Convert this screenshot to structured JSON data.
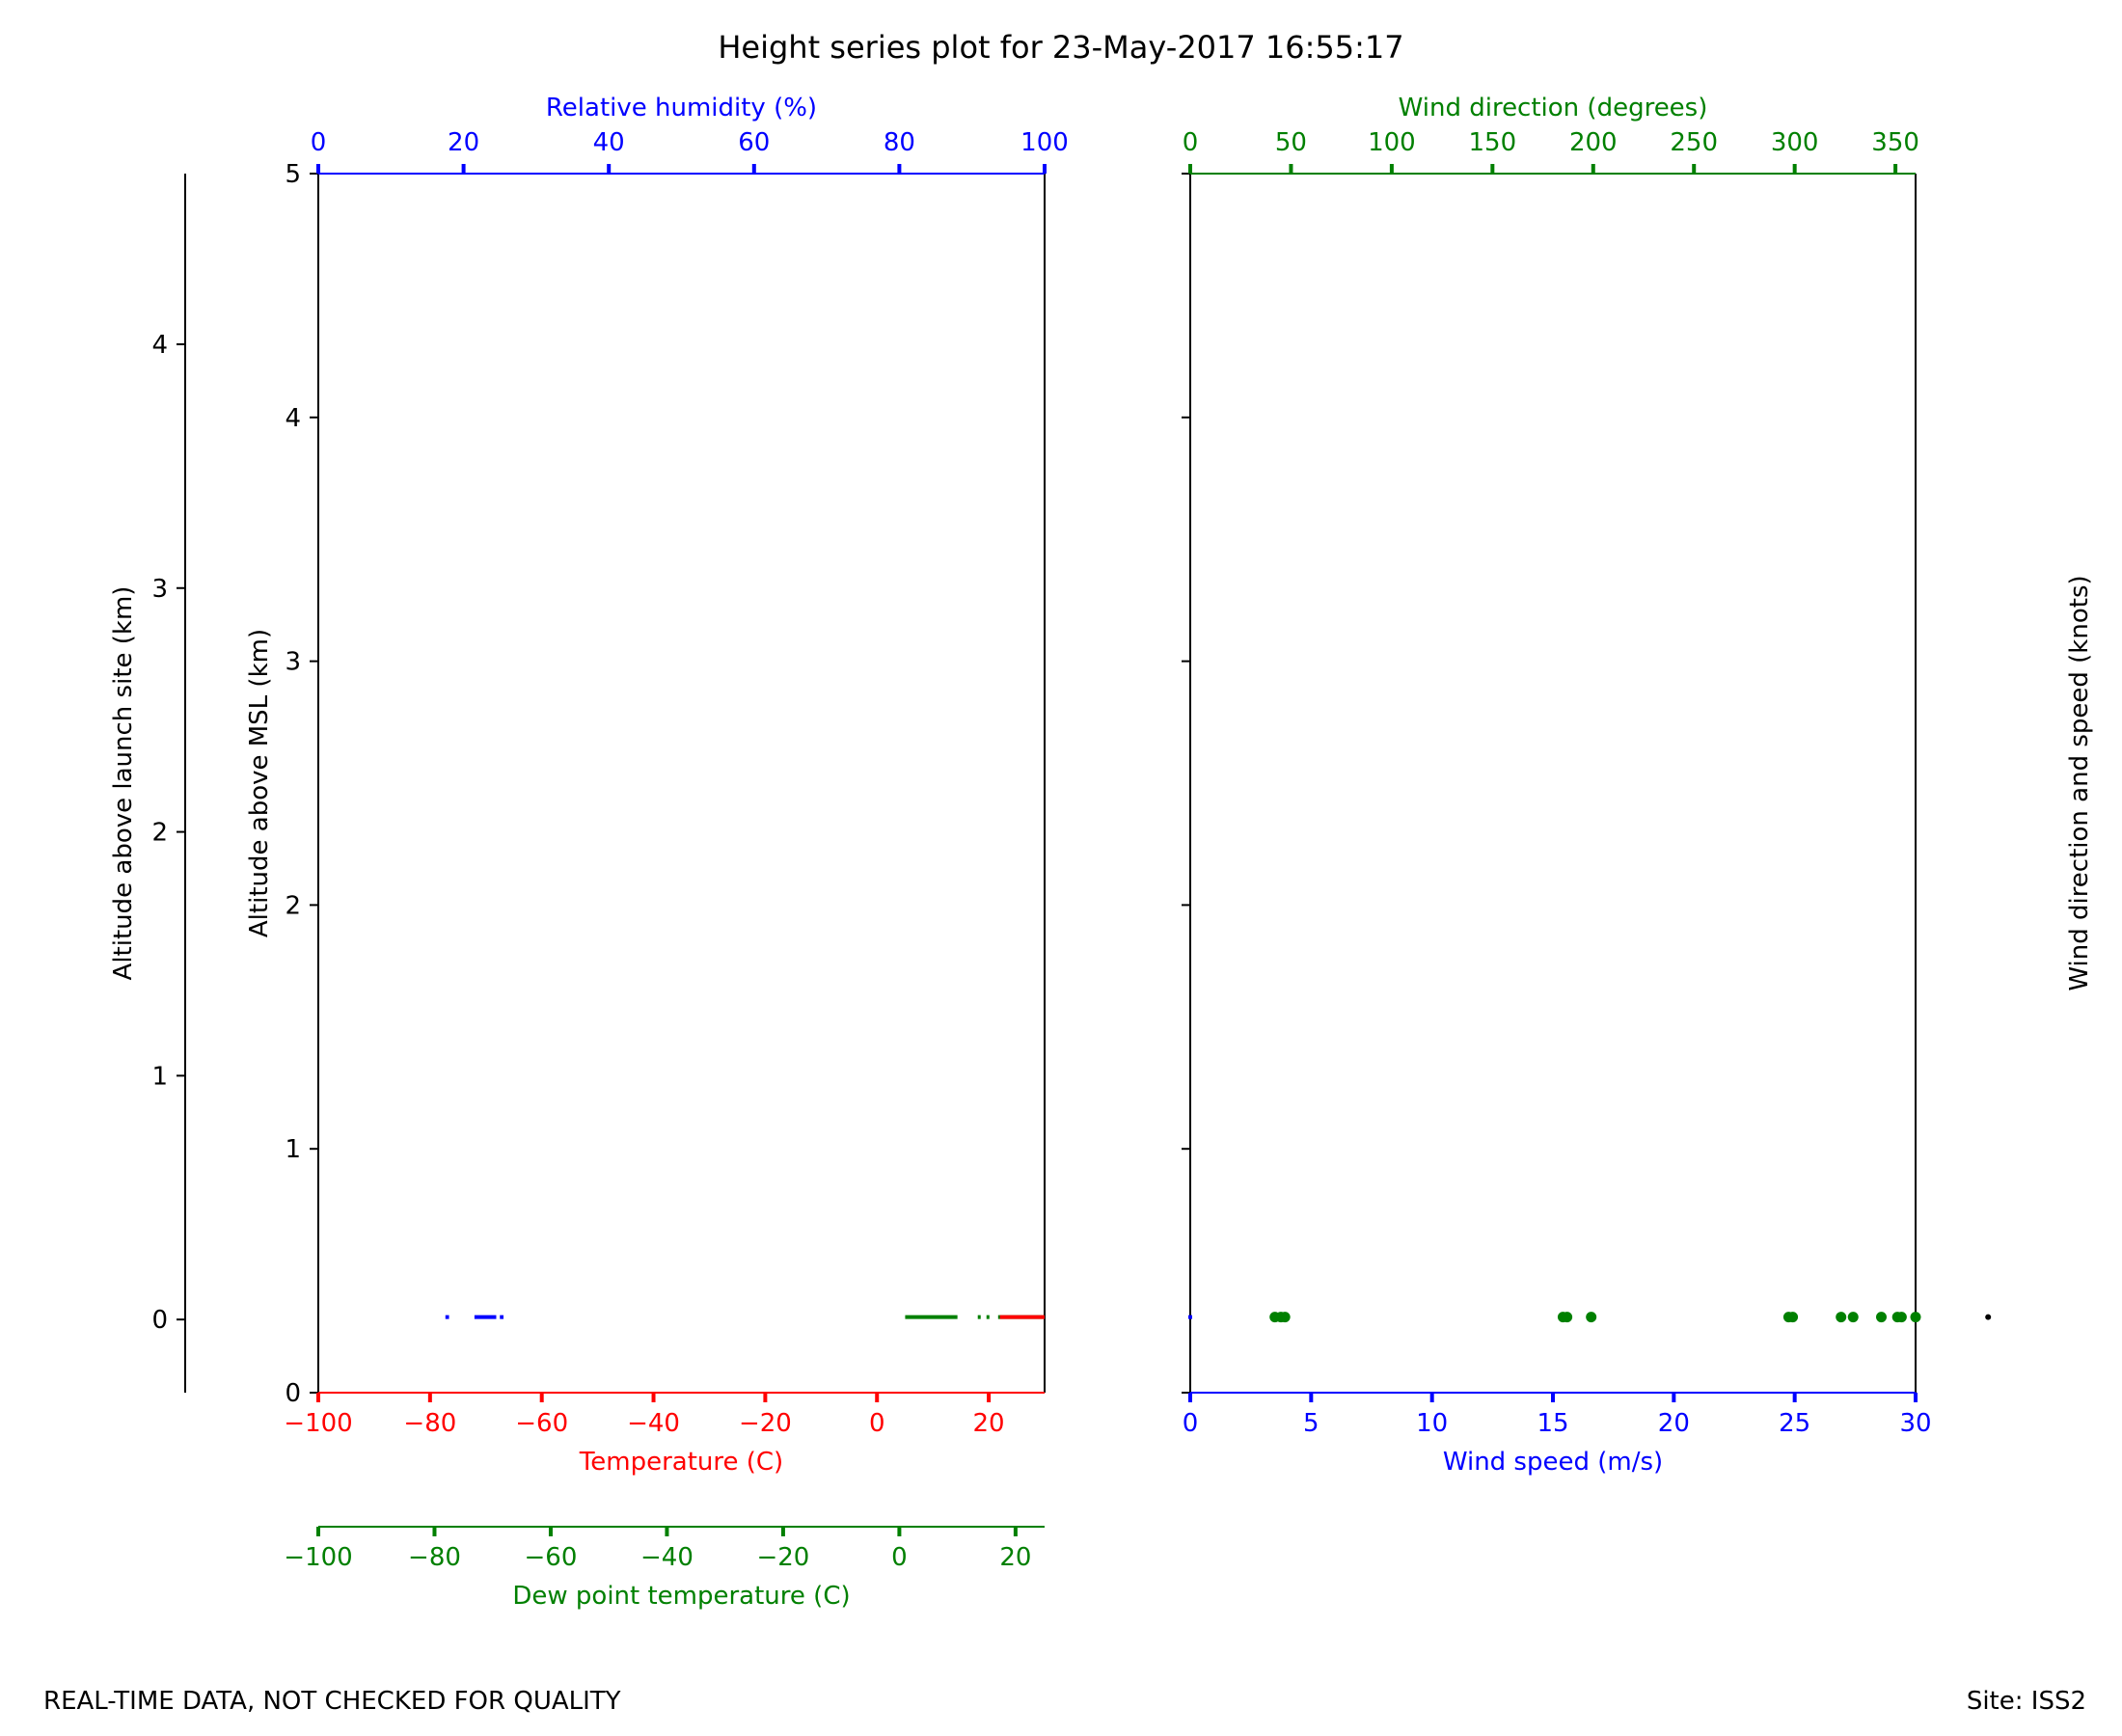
{
  "title": "Height series plot for 23-May-2017 16:55:17",
  "footer": {
    "left": "REAL-TIME DATA, NOT CHECKED FOR QUALITY",
    "right": "Site: ISS2"
  },
  "colors": {
    "temperature": "#ff0000",
    "dewpoint": "#008000",
    "humidity": "#0000ff",
    "wind_speed": "#0000ff",
    "wind_direction": "#008000",
    "axis": "#000000"
  },
  "chart_data": [
    {
      "type": "line",
      "panel": "thermodynamics",
      "y_axes": {
        "msl": {
          "label": "Altitude above MSL (km)",
          "ylim": [
            0,
            5
          ],
          "ticks": [
            0,
            1,
            2,
            3,
            4,
            5
          ]
        },
        "launch_site": {
          "label": "Altitude above launch site (km)",
          "ylim": [
            -0.3,
            4.7
          ],
          "ticks": [
            0,
            1,
            2,
            3,
            4
          ]
        }
      },
      "x_axes": {
        "temperature": {
          "label": "Temperature (C)",
          "xlim": [
            -100,
            30
          ],
          "ticks": [
            -100,
            -80,
            -60,
            -40,
            -20,
            0,
            20
          ],
          "tick_labels": [
            "−100",
            "−80",
            "−60",
            "−40",
            "−20",
            "0",
            "20"
          ]
        },
        "dewpoint": {
          "label": "Dew point temperature (C)",
          "xlim": [
            -100,
            25
          ],
          "ticks": [
            -100,
            -80,
            -60,
            -40,
            -20,
            0,
            20
          ],
          "tick_labels": [
            "−100",
            "−80",
            "−60",
            "−40",
            "−20",
            "0",
            "20"
          ]
        },
        "humidity": {
          "label": "Relative humidity (%)",
          "xlim": [
            0,
            100
          ],
          "ticks": [
            0,
            20,
            40,
            60,
            80,
            100
          ],
          "tick_labels": [
            "0",
            "20",
            "40",
            "60",
            "80",
            "100"
          ]
        }
      },
      "series": [
        {
          "key": "humidity",
          "segments": [
            [
              17.5,
              18.0
            ],
            [
              21.5,
              24.5
            ],
            [
              25.0,
              25.5
            ]
          ],
          "altitude_km": 0.31
        },
        {
          "key": "dewpoint",
          "segments": [
            [
              1.0,
              10.0
            ],
            [
              13.5,
              14.0
            ],
            [
              15.0,
              15.5
            ],
            [
              17.0,
              25.0
            ]
          ],
          "altitude_km": 0.31
        },
        {
          "key": "temperature",
          "segments": [
            [
              22.0,
              30.0
            ]
          ],
          "altitude_km": 0.31
        }
      ]
    },
    {
      "type": "scatter",
      "panel": "wind",
      "y_axes": {
        "msl": {
          "label": "",
          "ylim": [
            0,
            5
          ],
          "ticks": [
            0,
            1,
            2,
            3,
            4,
            5
          ]
        },
        "right_label": "Wind direction and speed (knots)"
      },
      "x_axes": {
        "wind_speed": {
          "label": "Wind speed (m/s)",
          "xlim": [
            0,
            30
          ],
          "ticks": [
            0,
            5,
            10,
            15,
            20,
            25,
            30
          ],
          "tick_labels": [
            "0",
            "5",
            "10",
            "15",
            "20",
            "25",
            "30"
          ]
        },
        "wind_direction": {
          "label": "Wind direction (degrees)",
          "xlim": [
            0,
            360
          ],
          "ticks": [
            0,
            50,
            100,
            150,
            200,
            250,
            300,
            350
          ],
          "tick_labels": [
            "0",
            "50",
            "100",
            "150",
            "200",
            "250",
            "300",
            "350"
          ]
        }
      },
      "series": [
        {
          "key": "wind_direction",
          "x": [
            42,
            45,
            47,
            185,
            187,
            199,
            297,
            299,
            323,
            329,
            343,
            351,
            353,
            360
          ],
          "y": [
            0.31,
            0.31,
            0.31,
            0.31,
            0.31,
            0.31,
            0.31,
            0.31,
            0.31,
            0.31,
            0.31,
            0.31,
            0.31,
            0.31
          ]
        },
        {
          "key": "wind_speed",
          "x": [
            0
          ],
          "y": [
            0.31
          ]
        },
        {
          "key": "barb",
          "x": [
            33
          ],
          "y": [
            0.31
          ]
        }
      ]
    }
  ]
}
